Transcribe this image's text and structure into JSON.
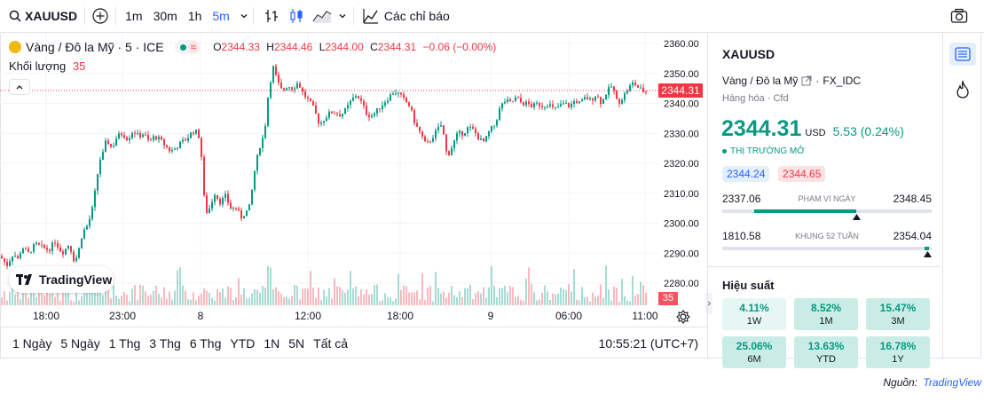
{
  "toolbar": {
    "symbol": "XAUUSD",
    "timeframes": [
      "1m",
      "30m",
      "1h",
      "5m"
    ],
    "active_timeframe": "5m",
    "indicators_label": "Các chỉ báo",
    "icons": [
      "search-icon",
      "plus-circle-icon",
      "chevron-down-icon",
      "bar-chart-icon",
      "candles-icon",
      "area-chart-icon",
      "indicators-icon",
      "camera-icon"
    ]
  },
  "legend": {
    "title": "Vàng / Đô la Mỹ · 5 · ICE",
    "open_label": "O",
    "open": "2344.33",
    "high_label": "H",
    "high": "2344.46",
    "low_label": "L",
    "low": "2344.00",
    "close_label": "C",
    "close": "2344.31",
    "change": "−0.06 (−0.00%)",
    "volume_label": "Khối lượng",
    "volume": "35",
    "brand": "TradingView"
  },
  "chart_data": {
    "type": "candlestick",
    "y_ticks": [
      2360,
      2350,
      2340,
      2330,
      2320,
      2310,
      2300,
      2290,
      2280
    ],
    "ylim": [
      2275,
      2365
    ],
    "x_ticks": [
      "18:00",
      "23:00",
      "8",
      "12:00",
      "18:00",
      "9",
      "06:00",
      "11:00"
    ],
    "last_price": "2344.31",
    "last_volume": "35",
    "path_points": [
      [
        0,
        2289
      ],
      [
        8,
        2286
      ],
      [
        15,
        2290
      ],
      [
        20,
        2288
      ],
      [
        25,
        2292
      ],
      [
        32,
        2290
      ],
      [
        40,
        2293
      ],
      [
        48,
        2292
      ],
      [
        55,
        2291
      ],
      [
        62,
        2294
      ],
      [
        70,
        2290
      ],
      [
        78,
        2293
      ],
      [
        84,
        2287
      ],
      [
        88,
        2290
      ],
      [
        93,
        2297
      ],
      [
        98,
        2299
      ],
      [
        103,
        2303
      ],
      [
        108,
        2312
      ],
      [
        112,
        2321
      ],
      [
        115,
        2322
      ],
      [
        120,
        2328
      ],
      [
        126,
        2325
      ],
      [
        132,
        2329
      ],
      [
        138,
        2330
      ],
      [
        144,
        2328
      ],
      [
        150,
        2331
      ],
      [
        156,
        2329
      ],
      [
        162,
        2330
      ],
      [
        168,
        2327
      ],
      [
        174,
        2329
      ],
      [
        180,
        2328
      ],
      [
        186,
        2326
      ],
      [
        192,
        2324
      ],
      [
        198,
        2325
      ],
      [
        204,
        2327
      ],
      [
        210,
        2328
      ],
      [
        215,
        2330
      ],
      [
        220,
        2331
      ],
      [
        224,
        2329
      ],
      [
        228,
        2320
      ],
      [
        231,
        2303
      ],
      [
        236,
        2305
      ],
      [
        242,
        2310
      ],
      [
        248,
        2307
      ],
      [
        254,
        2309
      ],
      [
        260,
        2305
      ],
      [
        266,
        2305
      ],
      [
        272,
        2302
      ],
      [
        278,
        2304
      ],
      [
        282,
        2306
      ],
      [
        286,
        2316
      ],
      [
        292,
        2325
      ],
      [
        298,
        2330
      ],
      [
        303,
        2345
      ],
      [
        308,
        2352
      ],
      [
        313,
        2347
      ],
      [
        318,
        2344
      ],
      [
        324,
        2346
      ],
      [
        330,
        2345
      ],
      [
        336,
        2347
      ],
      [
        342,
        2343
      ],
      [
        348,
        2341
      ],
      [
        354,
        2338
      ],
      [
        360,
        2333
      ],
      [
        366,
        2335
      ],
      [
        372,
        2337
      ],
      [
        378,
        2337
      ],
      [
        384,
        2336
      ],
      [
        390,
        2338
      ],
      [
        396,
        2341
      ],
      [
        402,
        2343
      ],
      [
        408,
        2340
      ],
      [
        414,
        2336
      ],
      [
        420,
        2336
      ],
      [
        426,
        2338
      ],
      [
        432,
        2340
      ],
      [
        438,
        2342
      ],
      [
        444,
        2344
      ],
      [
        450,
        2343
      ],
      [
        456,
        2341
      ],
      [
        462,
        2339
      ],
      [
        468,
        2333
      ],
      [
        474,
        2330
      ],
      [
        480,
        2326
      ],
      [
        486,
        2328
      ],
      [
        492,
        2331
      ],
      [
        498,
        2333
      ],
      [
        504,
        2322
      ],
      [
        510,
        2326
      ],
      [
        516,
        2330
      ],
      [
        522,
        2330
      ],
      [
        528,
        2332
      ],
      [
        534,
        2331
      ],
      [
        540,
        2328
      ],
      [
        546,
        2327
      ],
      [
        552,
        2331
      ],
      [
        558,
        2333
      ],
      [
        564,
        2339
      ],
      [
        570,
        2341
      ],
      [
        576,
        2340
      ],
      [
        582,
        2342
      ],
      [
        588,
        2340
      ],
      [
        594,
        2340
      ],
      [
        600,
        2339
      ],
      [
        606,
        2340
      ],
      [
        612,
        2339
      ],
      [
        618,
        2340
      ],
      [
        624,
        2338
      ],
      [
        630,
        2339
      ],
      [
        636,
        2340
      ],
      [
        642,
        2339
      ],
      [
        648,
        2341
      ],
      [
        654,
        2340
      ],
      [
        660,
        2342
      ],
      [
        666,
        2341
      ],
      [
        672,
        2343
      ],
      [
        678,
        2340
      ],
      [
        684,
        2344
      ],
      [
        690,
        2346
      ],
      [
        696,
        2340
      ],
      [
        702,
        2342
      ],
      [
        708,
        2345
      ],
      [
        714,
        2347
      ],
      [
        720,
        2345
      ],
      [
        726,
        2344
      ],
      [
        730,
        2344
      ]
    ]
  },
  "time_axis": {
    "labels": [
      "18:00",
      "23:00",
      "8",
      "12:00",
      "18:00",
      "9",
      "06:00",
      "11:00"
    ]
  },
  "range_bar": {
    "ranges": [
      "1 Ngày",
      "5 Ngày",
      "1 Thg",
      "3 Thg",
      "6 Thg",
      "YTD",
      "1N",
      "5N",
      "Tất cả"
    ],
    "clock": "10:55:21 (UTC+7)"
  },
  "panel": {
    "symbol": "XAUUSD",
    "name": "Vàng / Đô la Mỹ",
    "exchange": "FX_IDC",
    "category": "Hàng hóa · Cfd",
    "price": "2344.31",
    "currency": "USD",
    "change": "5.53 (0.24%)",
    "market_status": "THỊ TRƯỜNG MỞ",
    "bid": "2344.24",
    "ask": "2344.65",
    "day_range": {
      "label": "PHẠM VI NGÀY",
      "low": "2337.06",
      "high": "2348.45",
      "position": 0.64
    },
    "week52_range": {
      "label": "KHUNG 52 TUẦN",
      "low": "1810.58",
      "high": "2354.04",
      "position": 0.98
    },
    "performance_label": "Hiệu suất",
    "performance": [
      {
        "value": "4.11%",
        "label": "1W"
      },
      {
        "value": "8.52%",
        "label": "1M"
      },
      {
        "value": "15.47%",
        "label": "3M"
      },
      {
        "value": "25.06%",
        "label": "6M"
      },
      {
        "value": "13.63%",
        "label": "YTD"
      },
      {
        "value": "16.78%",
        "label": "1Y"
      }
    ]
  },
  "source": {
    "label": "Nguồn:",
    "brand": "TradingView"
  },
  "colors": {
    "up": "#089981",
    "down": "#f23645",
    "accent": "#2962ff"
  }
}
